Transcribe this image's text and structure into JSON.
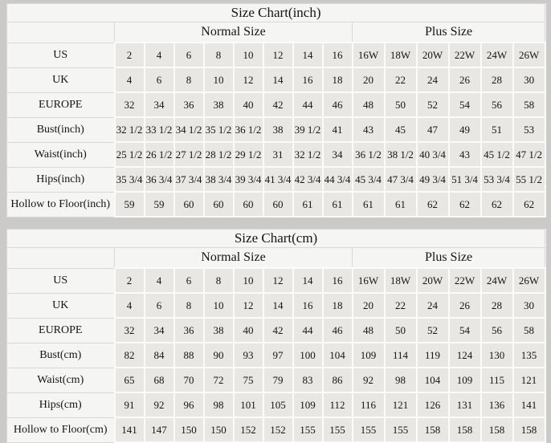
{
  "page": {
    "background": "#cbcac8",
    "table_background_light": "#f5f5f3",
    "table_background_cell": "#e8e7e4",
    "gridline_white": "#fbfbfa",
    "gridline_gray": "#d9d8d5",
    "text_color": "#141414"
  },
  "chart_data": [
    {
      "type": "table",
      "title": "Size Chart(inch)",
      "group_headers": [
        {
          "label": "Normal Size",
          "span": 8
        },
        {
          "label": "Plus Size",
          "span": 6
        }
      ],
      "rows": [
        {
          "label": "US",
          "values": [
            "2",
            "4",
            "6",
            "8",
            "10",
            "12",
            "14",
            "16",
            "16W",
            "18W",
            "20W",
            "22W",
            "24W",
            "26W"
          ]
        },
        {
          "label": "UK",
          "values": [
            "4",
            "6",
            "8",
            "10",
            "12",
            "14",
            "16",
            "18",
            "20",
            "22",
            "24",
            "26",
            "28",
            "30"
          ]
        },
        {
          "label": "EUROPE",
          "values": [
            "32",
            "34",
            "36",
            "38",
            "40",
            "42",
            "44",
            "46",
            "48",
            "50",
            "52",
            "54",
            "56",
            "58"
          ]
        },
        {
          "label": "Bust(inch)",
          "values": [
            "32 1/2",
            "33 1/2",
            "34 1/2",
            "35 1/2",
            "36 1/2",
            "38",
            "39 1/2",
            "41",
            "43",
            "45",
            "47",
            "49",
            "51",
            "53"
          ]
        },
        {
          "label": "Waist(inch)",
          "values": [
            "25 1/2",
            "26 1/2",
            "27 1/2",
            "28 1/2",
            "29 1/2",
            "31",
            "32 1/2",
            "34",
            "36 1/2",
            "38 1/2",
            "40 3/4",
            "43",
            "45 1/2",
            "47 1/2"
          ]
        },
        {
          "label": "Hips(inch)",
          "values": [
            "35 3/4",
            "36 3/4",
            "37 3/4",
            "38 3/4",
            "39 3/4",
            "41 3/4",
            "42 3/4",
            "44 3/4",
            "45 3/4",
            "47 3/4",
            "49 3/4",
            "51 3/4",
            "53 3/4",
            "55 1/2"
          ]
        },
        {
          "label": "Hollow to Floor(inch)",
          "values": [
            "59",
            "59",
            "60",
            "60",
            "60",
            "60",
            "61",
            "61",
            "61",
            "61",
            "62",
            "62",
            "62",
            "62"
          ]
        }
      ]
    },
    {
      "type": "table",
      "title": "Size Chart(cm)",
      "group_headers": [
        {
          "label": "Normal Size",
          "span": 8
        },
        {
          "label": "Plus Size",
          "span": 6
        }
      ],
      "rows": [
        {
          "label": "US",
          "values": [
            "2",
            "4",
            "6",
            "8",
            "10",
            "12",
            "14",
            "16",
            "16W",
            "18W",
            "20W",
            "22W",
            "24W",
            "26W"
          ]
        },
        {
          "label": "UK",
          "values": [
            "4",
            "6",
            "8",
            "10",
            "12",
            "14",
            "16",
            "18",
            "20",
            "22",
            "24",
            "26",
            "28",
            "30"
          ]
        },
        {
          "label": "EUROPE",
          "values": [
            "32",
            "34",
            "36",
            "38",
            "40",
            "42",
            "44",
            "46",
            "48",
            "50",
            "52",
            "54",
            "56",
            "58"
          ]
        },
        {
          "label": "Bust(cm)",
          "values": [
            "82",
            "84",
            "88",
            "90",
            "93",
            "97",
            "100",
            "104",
            "109",
            "114",
            "119",
            "124",
            "130",
            "135"
          ]
        },
        {
          "label": "Waist(cm)",
          "values": [
            "65",
            "68",
            "70",
            "72",
            "75",
            "79",
            "83",
            "86",
            "92",
            "98",
            "104",
            "109",
            "115",
            "121"
          ]
        },
        {
          "label": "Hips(cm)",
          "values": [
            "91",
            "92",
            "96",
            "98",
            "101",
            "105",
            "109",
            "112",
            "116",
            "121",
            "126",
            "131",
            "136",
            "141"
          ]
        },
        {
          "label": "Hollow to Floor(cm)",
          "values": [
            "141",
            "147",
            "150",
            "150",
            "152",
            "152",
            "155",
            "155",
            "155",
            "155",
            "158",
            "158",
            "158",
            "158"
          ]
        }
      ]
    }
  ]
}
